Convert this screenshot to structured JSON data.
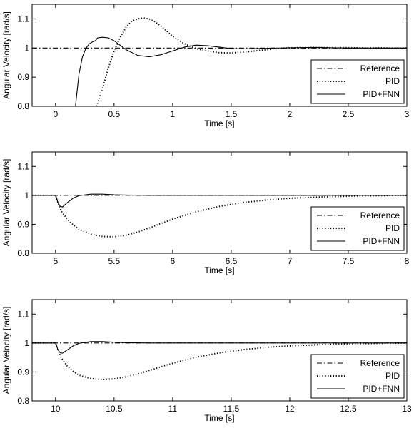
{
  "chart_data": [
    {
      "type": "line",
      "xlabel": "Time [s]",
      "ylabel": "Angular Velocity [rad/s]",
      "xlim": [
        -0.2,
        3
      ],
      "ylim": [
        0.8,
        1.15
      ],
      "xticks": [
        0,
        0.5,
        1,
        1.5,
        2,
        2.5,
        3
      ],
      "xtick_labels": [
        "0",
        "0.5",
        "1",
        "1.5",
        "2",
        "2.5",
        "3"
      ],
      "yticks": [
        0.8,
        0.9,
        1,
        1.1
      ],
      "ytick_labels": [
        "0.8",
        "0.9",
        "1",
        "1.1"
      ],
      "grid": false,
      "legend": "bottom-right",
      "series": [
        {
          "name": "Reference",
          "style": "dashdot",
          "x": [
            -0.2,
            3
          ],
          "y": [
            1,
            1
          ]
        },
        {
          "name": "PID",
          "style": "dotted",
          "x": [
            0.35,
            0.4,
            0.45,
            0.5,
            0.55,
            0.6,
            0.65,
            0.7,
            0.75,
            0.8,
            0.85,
            0.9,
            0.95,
            1.0,
            1.1,
            1.2,
            1.3,
            1.4,
            1.5,
            1.6,
            1.7,
            1.8,
            1.9,
            2.0,
            2.2,
            2.5,
            3.0
          ],
          "y": [
            0.8,
            0.86,
            0.93,
            0.99,
            1.035,
            1.07,
            1.092,
            1.1,
            1.103,
            1.1,
            1.09,
            1.075,
            1.058,
            1.04,
            1.015,
            0.998,
            0.99,
            0.984,
            0.983,
            0.986,
            0.99,
            0.994,
            0.998,
            1.001,
            1.002,
            1.001,
            1.0
          ]
        },
        {
          "name": "PID+FNN",
          "style": "solid",
          "x": [
            0.17,
            0.2,
            0.23,
            0.26,
            0.29,
            0.32,
            0.34,
            0.35,
            0.36,
            0.4,
            0.45,
            0.5,
            0.55,
            0.6,
            0.7,
            0.8,
            0.9,
            1.0,
            1.1,
            1.2,
            1.3,
            1.4,
            1.5,
            1.6,
            1.8,
            2.0,
            2.2,
            2.5,
            3.0
          ],
          "y": [
            0.8,
            0.91,
            0.97,
            1.0,
            1.015,
            1.022,
            1.025,
            1.03,
            1.035,
            1.037,
            1.035,
            1.025,
            1.01,
            0.995,
            0.975,
            0.97,
            0.977,
            0.99,
            1.003,
            1.01,
            1.008,
            1.003,
            0.998,
            0.997,
            0.999,
            1.001,
            1.002,
            1.0,
            1.0
          ]
        }
      ]
    },
    {
      "type": "line",
      "xlabel": "Time [s]",
      "ylabel": "Angular Velocity [rad/s]",
      "xlim": [
        4.8,
        8
      ],
      "ylim": [
        0.8,
        1.15
      ],
      "xticks": [
        5,
        5.5,
        6,
        6.5,
        7,
        7.5,
        8
      ],
      "xtick_labels": [
        "5",
        "5.5",
        "6",
        "6.5",
        "7",
        "7.5",
        "8"
      ],
      "yticks": [
        0.8,
        0.9,
        1,
        1.1
      ],
      "ytick_labels": [
        "0.8",
        "0.9",
        "1",
        "1.1"
      ],
      "grid": false,
      "legend": "bottom-right",
      "series": [
        {
          "name": "Reference",
          "style": "dashdot",
          "x": [
            4.8,
            8
          ],
          "y": [
            1,
            1
          ]
        },
        {
          "name": "PID",
          "style": "dotted",
          "x": [
            4.8,
            5.0,
            5.02,
            5.05,
            5.1,
            5.15,
            5.2,
            5.3,
            5.4,
            5.5,
            5.6,
            5.7,
            5.8,
            5.9,
            6.0,
            6.2,
            6.4,
            6.6,
            6.8,
            7.0,
            7.3,
            7.6,
            8.0
          ],
          "y": [
            1.0,
            1.0,
            0.975,
            0.945,
            0.918,
            0.898,
            0.883,
            0.866,
            0.858,
            0.857,
            0.862,
            0.873,
            0.887,
            0.903,
            0.918,
            0.943,
            0.962,
            0.975,
            0.984,
            0.99,
            0.995,
            0.998,
            1.0
          ]
        },
        {
          "name": "PID+FNN",
          "style": "solid",
          "x": [
            4.8,
            5.0,
            5.01,
            5.02,
            5.04,
            5.06,
            5.1,
            5.15,
            5.2,
            5.3,
            5.4,
            5.5,
            5.6,
            5.8,
            6.0,
            8.0
          ],
          "y": [
            1.0,
            1.0,
            0.99,
            0.975,
            0.962,
            0.96,
            0.975,
            0.99,
            0.999,
            1.004,
            1.004,
            1.002,
            1.001,
            1.0,
            1.0,
            1.0
          ]
        }
      ]
    },
    {
      "type": "line",
      "xlabel": "Time [s]",
      "ylabel": "Angular Velocity [rad/s]",
      "xlim": [
        9.8,
        13
      ],
      "ylim": [
        0.8,
        1.15
      ],
      "xticks": [
        10,
        10.5,
        11,
        11.5,
        12,
        12.5,
        13
      ],
      "xtick_labels": [
        "10",
        "10.5",
        "11",
        "11.5",
        "12",
        "12.5",
        "13"
      ],
      "yticks": [
        0.8,
        0.9,
        1,
        1.1
      ],
      "ytick_labels": [
        "0.8",
        "0.9",
        "1",
        "1.1"
      ],
      "grid": false,
      "legend": "bottom-right",
      "series": [
        {
          "name": "Reference",
          "style": "dashdot",
          "x": [
            9.8,
            13
          ],
          "y": [
            1,
            1
          ]
        },
        {
          "name": "PID",
          "style": "dotted",
          "x": [
            9.8,
            10.0,
            10.02,
            10.05,
            10.1,
            10.15,
            10.2,
            10.3,
            10.4,
            10.5,
            10.6,
            10.7,
            10.8,
            10.9,
            11.0,
            11.2,
            11.4,
            11.6,
            11.8,
            12.0,
            12.3,
            12.6,
            13.0
          ],
          "y": [
            1.0,
            1.0,
            0.975,
            0.948,
            0.92,
            0.902,
            0.889,
            0.877,
            0.874,
            0.876,
            0.883,
            0.893,
            0.905,
            0.918,
            0.93,
            0.951,
            0.966,
            0.977,
            0.985,
            0.99,
            0.995,
            0.998,
            1.0
          ]
        },
        {
          "name": "PID+FNN",
          "style": "solid",
          "x": [
            9.8,
            10.0,
            10.01,
            10.02,
            10.04,
            10.06,
            10.1,
            10.15,
            10.2,
            10.3,
            10.4,
            10.5,
            10.6,
            10.8,
            11.0,
            13.0
          ],
          "y": [
            1.0,
            1.0,
            0.99,
            0.977,
            0.966,
            0.965,
            0.976,
            0.99,
            0.999,
            1.005,
            1.005,
            1.003,
            1.001,
            1.0,
            1.0,
            1.0
          ]
        }
      ]
    }
  ]
}
